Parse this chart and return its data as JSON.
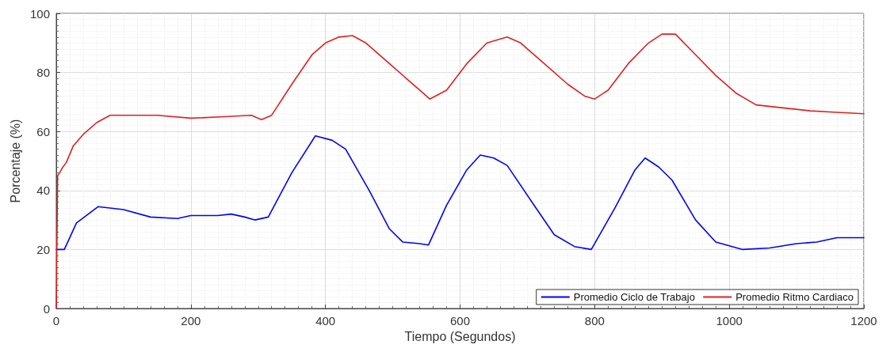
{
  "chart_data": {
    "type": "line",
    "xlabel": "Tiempo (Segundos)",
    "ylabel": "Porcentaje (%)",
    "xlim": [
      0,
      1200
    ],
    "xticks": [
      0,
      200,
      400,
      600,
      800,
      1000,
      1200
    ],
    "ylim": [
      0,
      100
    ],
    "yticks": [
      0,
      20,
      40,
      60,
      80,
      100
    ],
    "grid": true,
    "legend": "bottom right",
    "marker": "none",
    "line_style": "solid",
    "series": [
      {
        "name": "Promedio Ciclo de Trabajo",
        "color": "#0000ff",
        "x": [
          0,
          12,
          30,
          62,
          100,
          140,
          180,
          200,
          240,
          260,
          280,
          295,
          315,
          350,
          385,
          410,
          430,
          465,
          495,
          515,
          540,
          553,
          580,
          610,
          630,
          650,
          670,
          710,
          740,
          770,
          795,
          830,
          860,
          875,
          895,
          915,
          950,
          980,
          1020,
          1060,
          1100,
          1130,
          1160,
          1200
        ],
        "values": [
          20,
          20,
          29,
          34.5,
          33.5,
          31,
          30.5,
          31.5,
          31.5,
          32,
          31,
          30,
          31,
          46,
          58.5,
          57,
          54,
          40,
          27,
          22.5,
          22,
          21.5,
          35,
          47,
          52,
          51,
          48.5,
          35,
          25,
          21,
          20,
          34,
          47,
          51,
          48,
          43.5,
          30,
          22.5,
          20,
          20.5,
          22,
          22.5,
          24,
          24
        ]
      },
      {
        "name": "Promedio Ritmo Cardiaco",
        "color": "#e02020",
        "x": [
          0,
          2,
          5,
          10,
          15,
          25,
          40,
          60,
          80,
          100,
          150,
          200,
          250,
          290,
          305,
          320,
          350,
          380,
          400,
          420,
          440,
          460,
          490,
          520,
          545,
          555,
          580,
          610,
          640,
          670,
          690,
          720,
          760,
          785,
          800,
          820,
          850,
          880,
          900,
          920,
          950,
          980,
          1010,
          1040,
          1080,
          1120,
          1160,
          1200
        ],
        "values": [
          0,
          45,
          46,
          48,
          49.5,
          55,
          59,
          63,
          65.5,
          65.5,
          65.5,
          64.5,
          65,
          65.5,
          64,
          65.5,
          76,
          86,
          90,
          92,
          92.5,
          90,
          84,
          78,
          73,
          71,
          74,
          83,
          90,
          92,
          90,
          84,
          76,
          72,
          71,
          74,
          83,
          90,
          93,
          93,
          86,
          79,
          73,
          69,
          68,
          67,
          66.5,
          66
        ]
      }
    ]
  }
}
